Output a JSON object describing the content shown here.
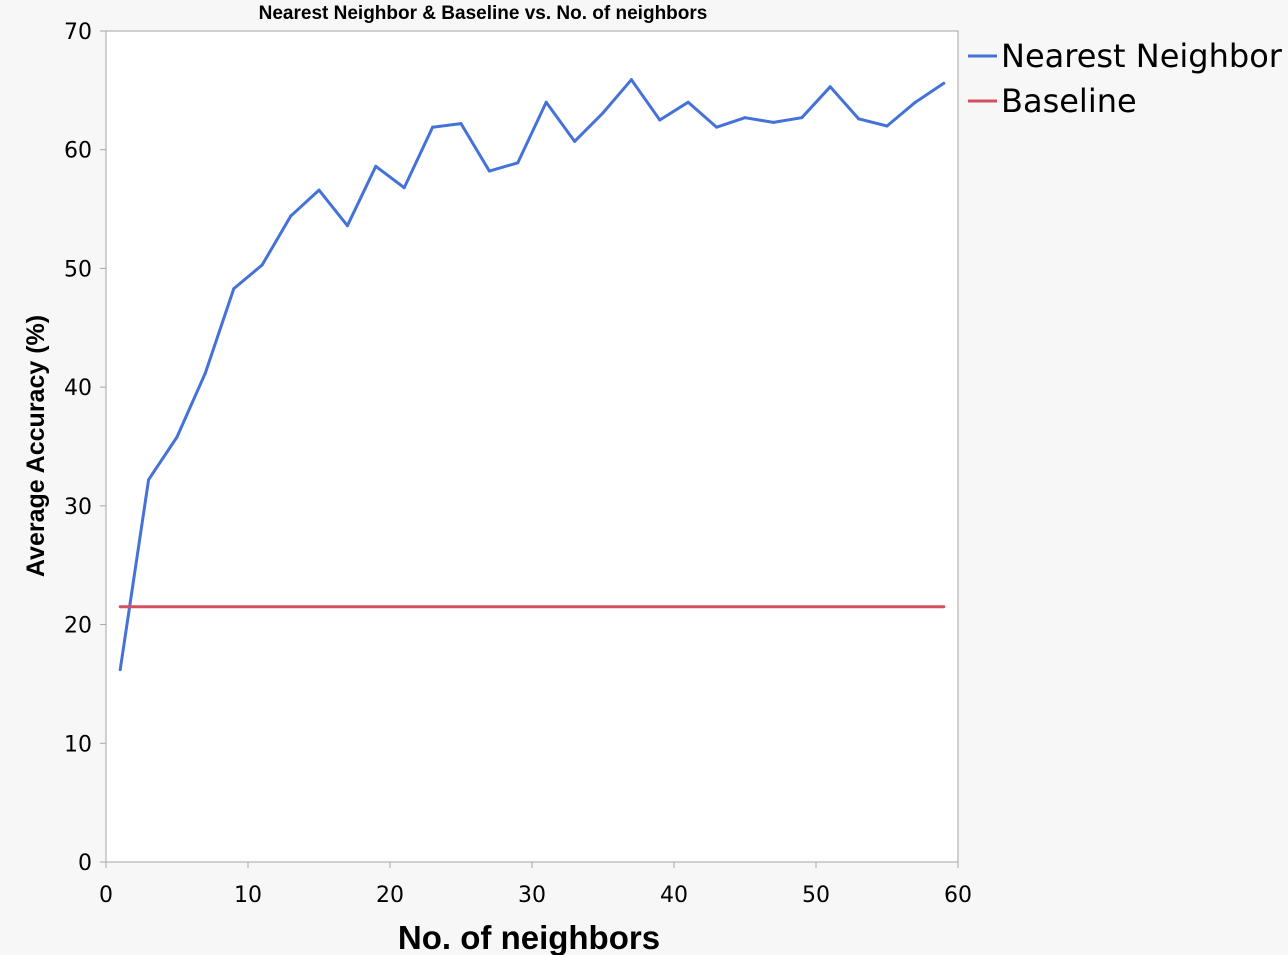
{
  "chart_data": {
    "type": "line",
    "title": "Nearest Neighbor & Baseline vs. No. of neighbors",
    "xlabel": "No. of neighbors",
    "ylabel": "Average Accuracy (%)",
    "xlim": [
      0,
      60
    ],
    "ylim": [
      0,
      70
    ],
    "xticks": [
      0,
      10,
      20,
      30,
      40,
      50,
      60
    ],
    "yticks": [
      0,
      10,
      20,
      30,
      40,
      50,
      60,
      70
    ],
    "grid": false,
    "legend_position": "right",
    "series": [
      {
        "name": "Nearest Neighbor",
        "color": "#4472d9",
        "x": [
          1,
          3,
          5,
          7,
          9,
          11,
          13,
          15,
          17,
          19,
          21,
          23,
          25,
          27,
          29,
          31,
          33,
          35,
          37,
          39,
          41,
          43,
          45,
          47,
          49,
          51,
          53,
          55,
          57,
          59
        ],
        "y": [
          16.2,
          32.2,
          35.8,
          41.2,
          48.3,
          50.3,
          54.4,
          56.6,
          53.6,
          58.6,
          56.8,
          61.9,
          62.2,
          58.2,
          58.9,
          64.0,
          60.7,
          63.1,
          65.9,
          62.5,
          64.0,
          61.9,
          62.7,
          62.3,
          62.7,
          65.3,
          62.6,
          62.0,
          64.0,
          65.6
        ]
      },
      {
        "name": "Baseline",
        "color": "#d4505e",
        "x": [
          1,
          59
        ],
        "y": [
          21.5,
          21.5
        ]
      }
    ]
  }
}
